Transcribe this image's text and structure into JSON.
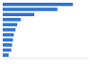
{
  "chart_data": {
    "type": "bar",
    "orientation": "horizontal",
    "categories": [
      null,
      null,
      null,
      null,
      null,
      null,
      null,
      null,
      null,
      null,
      null
    ],
    "values": [
      82,
      64,
      37,
      21,
      17,
      15,
      13,
      12,
      11,
      10,
      7
    ],
    "color": "#2f72d6",
    "xlim": [
      0,
      100
    ],
    "grid": false,
    "tick_labels": false
  }
}
